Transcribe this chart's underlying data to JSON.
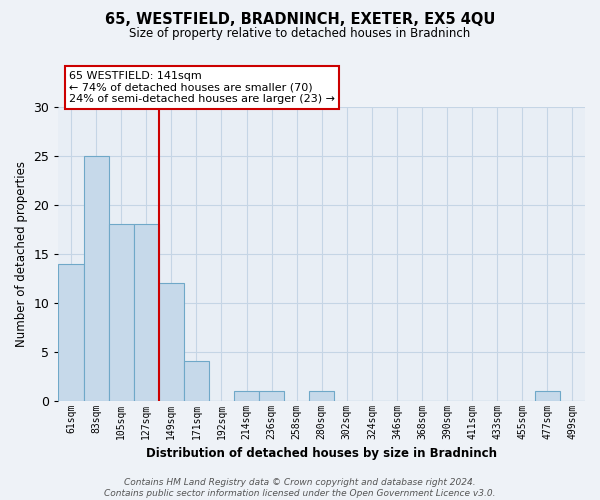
{
  "title": "65, WESTFIELD, BRADNINCH, EXETER, EX5 4QU",
  "subtitle": "Size of property relative to detached houses in Bradninch",
  "xlabel": "Distribution of detached houses by size in Bradninch",
  "ylabel": "Number of detached properties",
  "bar_labels": [
    "61sqm",
    "83sqm",
    "105sqm",
    "127sqm",
    "149sqm",
    "171sqm",
    "192sqm",
    "214sqm",
    "236sqm",
    "258sqm",
    "280sqm",
    "302sqm",
    "324sqm",
    "346sqm",
    "368sqm",
    "390sqm",
    "411sqm",
    "433sqm",
    "455sqm",
    "477sqm",
    "499sqm"
  ],
  "bar_values": [
    14,
    25,
    18,
    18,
    12,
    4,
    0,
    1,
    1,
    0,
    1,
    0,
    0,
    0,
    0,
    0,
    0,
    0,
    0,
    1,
    0
  ],
  "bar_color": "#c6d9ea",
  "bar_edge_color": "#6fa8c8",
  "annotation_box_text": "65 WESTFIELD: 141sqm\n← 74% of detached houses are smaller (70)\n24% of semi-detached houses are larger (23) →",
  "annotation_box_color": "#ffffff",
  "annotation_box_edge_color": "#cc0000",
  "vline_x": 3.5,
  "vline_color": "#cc0000",
  "ylim": [
    0,
    30
  ],
  "yticks": [
    0,
    5,
    10,
    15,
    20,
    25,
    30
  ],
  "footer_text": "Contains HM Land Registry data © Crown copyright and database right 2024.\nContains public sector information licensed under the Open Government Licence v3.0.",
  "background_color": "#eef2f7",
  "plot_background_color": "#e8eef5",
  "grid_color": "#c5d5e5"
}
